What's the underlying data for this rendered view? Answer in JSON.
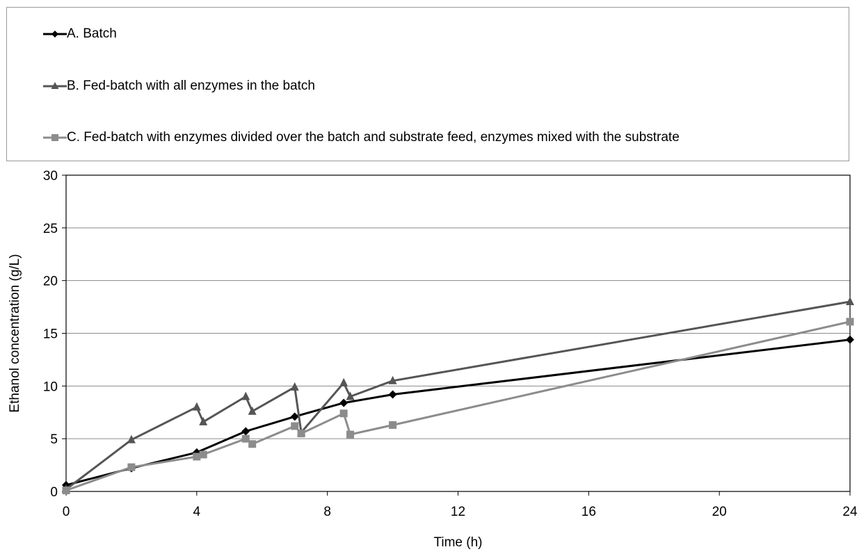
{
  "chart_data": {
    "type": "line",
    "title": "",
    "xlabel": "Time (h)",
    "ylabel": "Ethanol concentration (g/L)",
    "xlim": [
      0,
      24
    ],
    "ylim": [
      0,
      30
    ],
    "xticks": [
      0,
      4,
      8,
      12,
      16,
      20,
      24
    ],
    "yticks": [
      0,
      5,
      10,
      15,
      20,
      25,
      30
    ],
    "x_tick_labels": [
      "0",
      "4",
      "8",
      "12",
      "16",
      "20",
      "24"
    ],
    "y_tick_labels": [
      "0",
      "5",
      "10",
      "15",
      "20",
      "25",
      "30"
    ],
    "grid": "horizontal",
    "legend_position": "top",
    "series": [
      {
        "name": "A. Batch",
        "color": "#000000",
        "marker": "diamond",
        "points": [
          [
            0,
            0.6
          ],
          [
            2,
            2.2
          ],
          [
            4,
            3.7
          ],
          [
            5.5,
            5.7
          ],
          [
            7,
            7.1
          ],
          [
            8.5,
            8.4
          ],
          [
            10,
            9.2
          ],
          [
            24,
            14.4
          ]
        ]
      },
      {
        "name": "B. Fed-batch with all enzymes in the batch",
        "color": "#555555",
        "marker": "triangle",
        "points": [
          [
            0,
            0.2
          ],
          [
            2,
            4.9
          ],
          [
            4,
            8.0
          ],
          [
            4.2,
            6.6
          ],
          [
            5.5,
            9.0
          ],
          [
            5.7,
            7.6
          ],
          [
            7,
            9.9
          ],
          [
            7.2,
            5.6
          ],
          [
            8.5,
            10.3
          ],
          [
            8.7,
            9.0
          ],
          [
            10,
            10.5
          ],
          [
            24,
            18.0
          ]
        ]
      },
      {
        "name": "C. Fed-batch with enzymes divided over the batch and substrate feed, enzymes mixed with the substrate",
        "color": "#8c8c8c",
        "marker": "square",
        "points": [
          [
            0,
            0.1
          ],
          [
            2,
            2.3
          ],
          [
            4,
            3.3
          ],
          [
            4.2,
            3.5
          ],
          [
            5.5,
            5.0
          ],
          [
            5.7,
            4.5
          ],
          [
            7,
            6.2
          ],
          [
            7.2,
            5.5
          ],
          [
            8.5,
            7.4
          ],
          [
            8.7,
            5.4
          ],
          [
            10,
            6.3
          ],
          [
            24,
            16.1
          ]
        ]
      }
    ]
  }
}
